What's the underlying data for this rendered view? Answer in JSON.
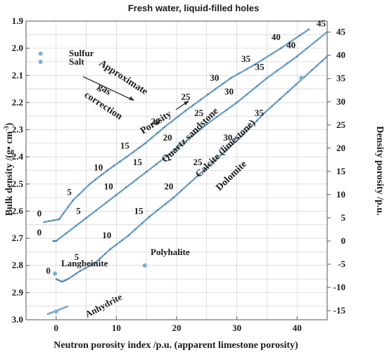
{
  "colors": {
    "curve": "#6fa1c6",
    "point": "#7aaed3",
    "grid": "#c9c9c9",
    "text": "#1a1a1a",
    "arrow": "#333333"
  },
  "chart_data": {
    "type": "line",
    "title": "Fresh water, liquid-filled holes",
    "xlabel": "Neutron porosity index /p.u.  (apparent limestone porosity)",
    "ylabel": "Bulk density /(g• cm",
    "ylabel_sup": "-3",
    "ylabel_close": ")",
    "y2label": "Density porosity /p.u.",
    "xlim": [
      -5,
      45
    ],
    "ylim": [
      3.0,
      1.9
    ],
    "grid": true,
    "x_ticks": [
      0,
      10,
      20,
      30,
      40
    ],
    "y_ticks": [
      1.9,
      2.0,
      2.1,
      2.2,
      2.3,
      2.4,
      2.5,
      2.6,
      2.7,
      2.8,
      2.9,
      3.0
    ],
    "y_tick_labels": [
      "1.9",
      "2.0",
      "2.1",
      "2.2",
      "2.3",
      "2.4",
      "2.5",
      "2.6",
      "2.7",
      "2.8",
      "2.9",
      "3.0"
    ],
    "y2_ticks": [
      45,
      40,
      35,
      30,
      25,
      20,
      15,
      10,
      5,
      0,
      -5,
      -10,
      -15
    ],
    "y2_reference": {
      "porosity_0_density": 2.71,
      "porosity_100_density": 1.0
    },
    "series": [
      {
        "name": "Quartz sandstone",
        "x": [
          -2.0,
          0.5,
          2.8,
          5.6,
          8.5,
          11.7,
          14.8,
          18.0,
          21.5,
          25.2,
          29.0,
          33.0,
          37.3,
          42.0
        ],
        "y": [
          2.64,
          2.63,
          2.56,
          2.5,
          2.45,
          2.4,
          2.35,
          2.29,
          2.23,
          2.17,
          2.11,
          2.06,
          2.0,
          1.93
        ],
        "porosity_labels": [
          {
            "x": -2.8,
            "y": 2.62,
            "text": "0"
          },
          {
            "x": 2.2,
            "y": 2.54,
            "text": "5"
          },
          {
            "x": 7.0,
            "y": 2.45,
            "text": "10"
          },
          {
            "x": 11.4,
            "y": 2.37,
            "text": "15"
          },
          {
            "x": 16.5,
            "y": 2.28,
            "text": "20"
          },
          {
            "x": 21.5,
            "y": 2.19,
            "text": "25"
          },
          {
            "x": 26.3,
            "y": 2.12,
            "text": "30"
          },
          {
            "x": 31.5,
            "y": 2.05,
            "text": "35"
          },
          {
            "x": 36.5,
            "y": 1.97,
            "text": "40"
          }
        ]
      },
      {
        "name": "Calcite (limestone)",
        "x": [
          -0.5,
          0.0,
          5.0,
          10.0,
          15.0,
          20.0,
          25.0,
          30.0,
          35.0,
          40.0,
          45.0
        ],
        "y": [
          2.71,
          2.71,
          2.625,
          2.54,
          2.455,
          2.37,
          2.28,
          2.2,
          2.11,
          2.03,
          1.94
        ],
        "porosity_labels": [
          {
            "x": -2.8,
            "y": 2.69,
            "text": "0"
          },
          {
            "x": 3.7,
            "y": 2.61,
            "text": "5"
          },
          {
            "x": 8.7,
            "y": 2.52,
            "text": "10"
          },
          {
            "x": 13.5,
            "y": 2.43,
            "text": "15"
          },
          {
            "x": 18.5,
            "y": 2.34,
            "text": "20"
          },
          {
            "x": 23.7,
            "y": 2.25,
            "text": "25"
          },
          {
            "x": 28.7,
            "y": 2.17,
            "text": "30"
          },
          {
            "x": 33.8,
            "y": 2.08,
            "text": "35"
          },
          {
            "x": 39.0,
            "y": 2.0,
            "text": "40"
          },
          {
            "x": 44.0,
            "y": 1.92,
            "text": "45"
          }
        ]
      },
      {
        "name": "Dolomite",
        "x": [
          0.0,
          1.0,
          2.0,
          4.0,
          6.5,
          9.0,
          12.0,
          15.5,
          19.5,
          23.5,
          27.5,
          31.0,
          34.5,
          38.5,
          42.5,
          45.0
        ],
        "y": [
          2.85,
          2.86,
          2.85,
          2.82,
          2.79,
          2.74,
          2.69,
          2.62,
          2.55,
          2.47,
          2.39,
          2.32,
          2.24,
          2.16,
          2.08,
          2.03
        ],
        "porosity_labels": [
          {
            "x": -1.3,
            "y": 2.83,
            "text": "0"
          },
          {
            "x": 3.4,
            "y": 2.78,
            "text": "5"
          },
          {
            "x": 8.4,
            "y": 2.7,
            "text": "10"
          },
          {
            "x": 13.7,
            "y": 2.61,
            "text": "15"
          },
          {
            "x": 18.7,
            "y": 2.52,
            "text": "20"
          },
          {
            "x": 23.5,
            "y": 2.43,
            "text": "25"
          },
          {
            "x": 28.5,
            "y": 2.34,
            "text": "30"
          },
          {
            "x": 33.7,
            "y": 2.25,
            "text": "35"
          }
        ]
      }
    ],
    "anhydrite_line": {
      "x": [
        -1.5,
        2.0
      ],
      "y": [
        2.98,
        2.95
      ]
    },
    "points": [
      {
        "name": "Sulfur",
        "x": -2.6,
        "y": 2.02
      },
      {
        "name": "Salt",
        "x": -2.6,
        "y": 2.05
      },
      {
        "name": "Langbeinite",
        "x": -0.2,
        "y": 2.83
      },
      {
        "name": "Polyhalite",
        "x": 14.7,
        "y": 2.8
      },
      {
        "name": "Anhydrite",
        "x": 0.0,
        "y": 2.97
      },
      {
        "name": "",
        "x": 40.7,
        "y": 2.11
      }
    ],
    "annotations": {
      "gas_correction": [
        "Approximate",
        "gas",
        "correction"
      ],
      "porosity_label": "Porosity",
      "curve_labels": [
        "Quartz sandstone",
        "Calcite (limestone)",
        "Dolomite"
      ],
      "mineral_labels": [
        "Sulfur",
        "Salt",
        "Langbeinite",
        "Polyhalite",
        "Anhydrite"
      ]
    }
  }
}
